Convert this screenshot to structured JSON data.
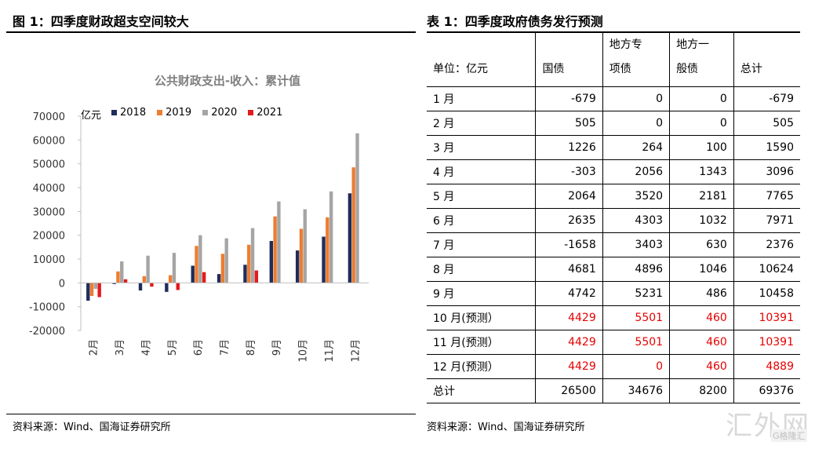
{
  "left_heading": "图 1：四季度财政超支空间较大",
  "right_heading": "表 1：四季度政府债务发行预测",
  "left_source": "资料来源：Wind、国海证券研究所",
  "right_source": "资料来源：Wind、国海证券研究所",
  "watermark": "汇外网",
  "watermark_sub": "G格隆汇",
  "chart_data": {
    "type": "bar",
    "title": "公共财政支出-收入：累计值",
    "unit_label": "亿元",
    "categories": [
      "2月",
      "3月",
      "4月",
      "5月",
      "6月",
      "7月",
      "8月",
      "9月",
      "10月",
      "11月",
      "12月"
    ],
    "ylim": [
      -20000,
      70000
    ],
    "yticks": [
      "70000",
      "60000",
      "50000",
      "40000",
      "30000",
      "20000",
      "10000",
      "0",
      "-10000",
      "-20000"
    ],
    "ytick_values": [
      70000,
      60000,
      50000,
      40000,
      30000,
      20000,
      10000,
      0,
      -10000,
      -20000
    ],
    "legend_position": "top",
    "grid": false,
    "series": [
      {
        "name": "2018",
        "color": "#1f2d5c",
        "values": [
          -7500,
          -500,
          -3200,
          -3800,
          7200,
          3700,
          7600,
          17600,
          13600,
          19400,
          37600
        ]
      },
      {
        "name": "2019",
        "color": "#ed7d31",
        "values": [
          -5500,
          4800,
          2800,
          3200,
          15500,
          12200,
          16000,
          27900,
          22700,
          27500,
          48500
        ]
      },
      {
        "name": "2020",
        "color": "#a5a5a5",
        "values": [
          -2500,
          9000,
          11400,
          12600,
          20000,
          18700,
          23000,
          34200,
          30900,
          38400,
          62800
        ]
      },
      {
        "name": "2021",
        "color": "#e31a1c",
        "values": [
          -6000,
          1500,
          -1600,
          -3000,
          4500,
          null,
          5200,
          null,
          null,
          null,
          null
        ]
      }
    ]
  },
  "table": {
    "headers": [
      [
        "单位：亿元"
      ],
      [
        "国债"
      ],
      [
        "地方专",
        "项债"
      ],
      [
        "地方一",
        "般债"
      ],
      [
        "总计"
      ]
    ],
    "rows": [
      {
        "month": "1 月",
        "guozhai": "-679",
        "zhuanxiang": "0",
        "yiban": "0",
        "total": "-679"
      },
      {
        "month": "2 月",
        "guozhai": "505",
        "zhuanxiang": "0",
        "yiban": "0",
        "total": "505"
      },
      {
        "month": "3 月",
        "guozhai": "1226",
        "zhuanxiang": "264",
        "yiban": "100",
        "total": "1590"
      },
      {
        "month": "4 月",
        "guozhai": "-303",
        "zhuanxiang": "2056",
        "yiban": "1343",
        "total": "3096"
      },
      {
        "month": "5 月",
        "guozhai": "2064",
        "zhuanxiang": "3520",
        "yiban": "2181",
        "total": "7765"
      },
      {
        "month": "6 月",
        "guozhai": "2635",
        "zhuanxiang": "4303",
        "yiban": "1032",
        "total": "7971"
      },
      {
        "month": "7 月",
        "guozhai": "-1658",
        "zhuanxiang": "3403",
        "yiban": "630",
        "total": "2376"
      },
      {
        "month": "8 月",
        "guozhai": "4681",
        "zhuanxiang": "4896",
        "yiban": "1046",
        "total": "10624"
      },
      {
        "month": "9 月",
        "guozhai": "4742",
        "zhuanxiang": "5231",
        "yiban": "486",
        "total": "10458"
      },
      {
        "month": "10 月(预测）",
        "guozhai": "4429",
        "zhuanxiang": "5501",
        "yiban": "460",
        "total": "10391",
        "forecast": true
      },
      {
        "month": "11 月(预测）",
        "guozhai": "4429",
        "zhuanxiang": "5501",
        "yiban": "460",
        "total": "10391",
        "forecast": true
      },
      {
        "month": "12 月(预测）",
        "guozhai": "4429",
        "zhuanxiang": "0",
        "yiban": "460",
        "total": "4889",
        "forecast": true
      },
      {
        "month": "总计",
        "guozhai": "26500",
        "zhuanxiang": "34676",
        "yiban": "8200",
        "total": "69376"
      }
    ]
  }
}
